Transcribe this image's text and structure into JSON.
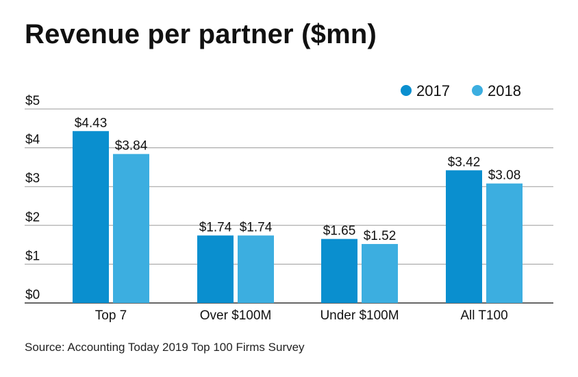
{
  "title": "Revenue per partner ($mn)",
  "source": "Source: Accounting Today 2019 Top 100 Firms Survey",
  "colors": {
    "2017": "#0a8fcf",
    "2018": "#3caee0",
    "grid": "#9a9a9a",
    "axis": "#333333"
  },
  "chart_data": {
    "type": "bar",
    "title": "Revenue per partner ($mn)",
    "categories": [
      "Top 7",
      "Over $100M",
      "Under $100M",
      "All T100"
    ],
    "series": [
      {
        "name": "2017",
        "values": [
          4.43,
          1.74,
          1.65,
          3.42
        ],
        "labels": [
          "$4.43",
          "$1.74",
          "$1.65",
          "$3.42"
        ]
      },
      {
        "name": "2018",
        "values": [
          3.84,
          1.74,
          1.52,
          3.08
        ],
        "labels": [
          "$3.84",
          "$1.74",
          "$1.52",
          "$3.08"
        ]
      }
    ],
    "yticks": [
      0,
      1,
      2,
      3,
      4,
      5
    ],
    "ytick_labels": [
      "$0",
      "$1",
      "$2",
      "$3",
      "$4",
      "$5"
    ],
    "ylim": [
      0,
      5
    ],
    "grid": true,
    "legend": "top-right"
  }
}
